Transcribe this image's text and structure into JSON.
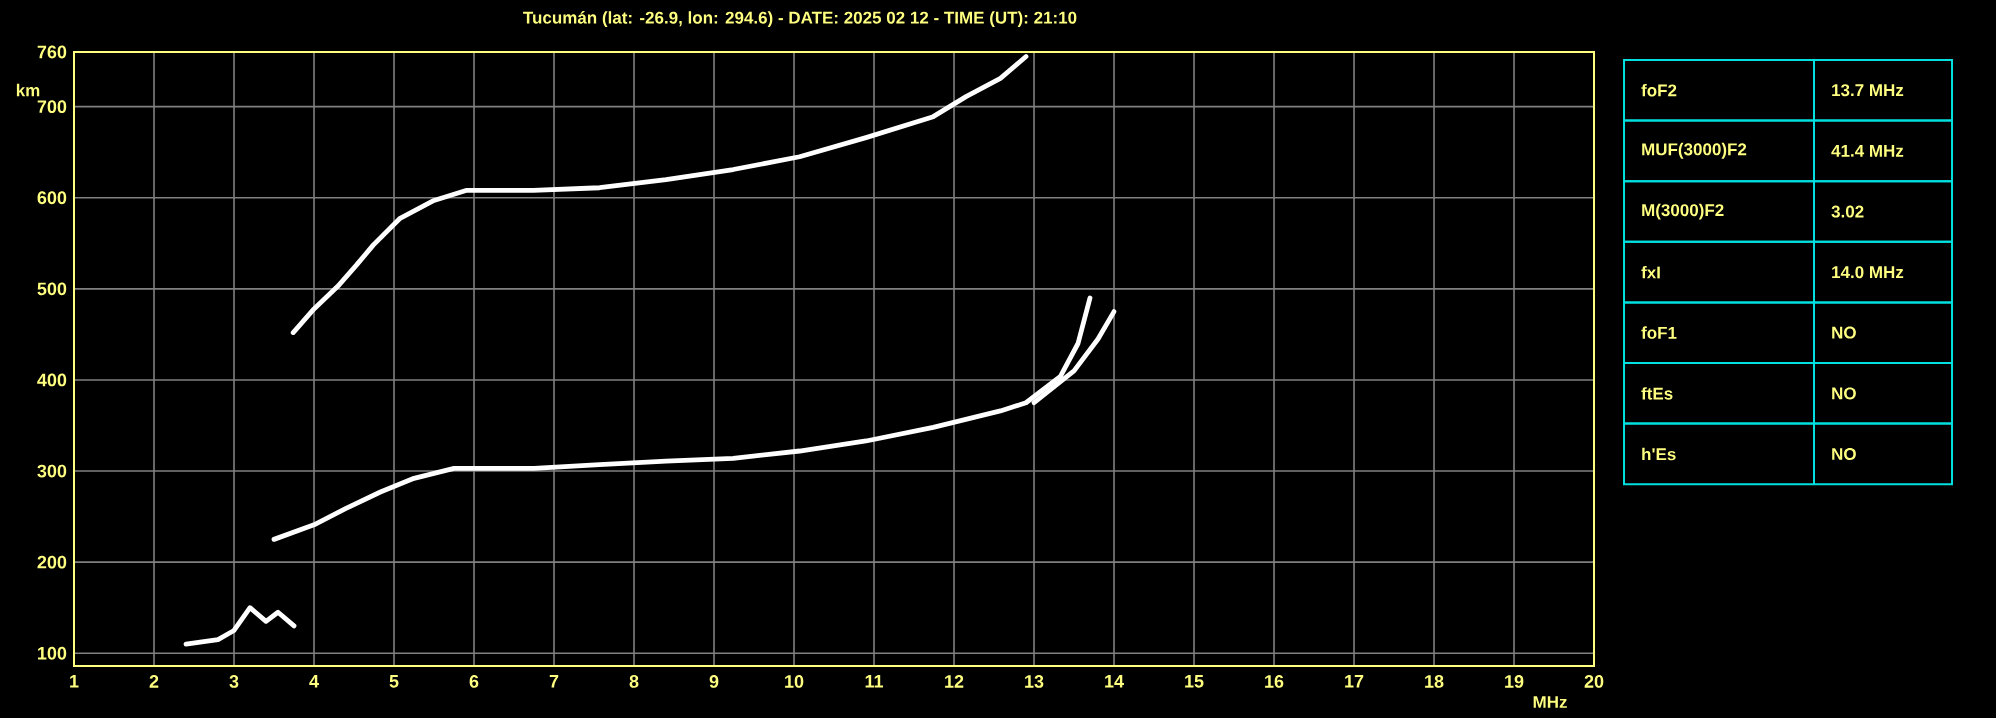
{
  "chart_data": [
    {
      "type": "line",
      "title": "Tucumán (lat: -26.9, lon: 294.6) - DATE: 2025 02 12 - TIME (UT): 21:10",
      "xlabel": "MHz",
      "ylabel": "km",
      "xlim": [
        1,
        20
      ],
      "ylim": [
        86,
        760
      ],
      "xticks": [
        1,
        2,
        3,
        4,
        5,
        6,
        7,
        8,
        9,
        10,
        11,
        12,
        13,
        14,
        15,
        16,
        17,
        18,
        19,
        20
      ],
      "yticks": [
        100,
        200,
        300,
        400,
        500,
        600,
        700,
        760
      ],
      "grid": true,
      "marker": "none",
      "line_style": "solid",
      "series": [
        {
          "color": "#ffffff",
          "x": [
            3.74,
            4.0,
            4.3,
            4.53,
            4.74,
            5.07,
            5.5,
            5.9,
            6.74,
            7.57,
            8.4,
            9.24,
            10.07,
            10.9,
            11.74,
            12.15,
            12.58,
            12.9
          ],
          "values": [
            452,
            478,
            503,
            526,
            548,
            577,
            597,
            608,
            608,
            611,
            620,
            631,
            645,
            666,
            689,
            711,
            731,
            755
          ]
        },
        {
          "color": "#ffffff",
          "x": [
            3.5,
            4.0,
            4.4,
            4.83,
            5.25,
            5.75,
            6.75,
            7.57,
            8.4,
            9.24,
            10.07,
            10.9,
            11.74,
            12.58,
            12.9,
            13.33,
            13.55,
            13.7
          ],
          "values": [
            225,
            241,
            259,
            277,
            292,
            303,
            303,
            307,
            311,
            314,
            322,
            333,
            348,
            366,
            375,
            404,
            440,
            490
          ]
        },
        {
          "color": "#ffffff",
          "x": [
            13.0,
            13.5,
            13.8,
            14.0
          ],
          "values": [
            375,
            410,
            445,
            475
          ]
        },
        {
          "color": "#ffffff",
          "x": [
            2.4,
            2.8,
            3.0,
            3.2,
            3.4,
            3.55,
            3.75
          ],
          "values": [
            110,
            115,
            125,
            150,
            135,
            145,
            130
          ]
        }
      ]
    },
    {
      "type": "other",
      "annotations": [
        "foF2",
        "13.7 MHz",
        "MUF(3000)F2",
        "41.4 MHz",
        "M(3000)F2",
        "3.02",
        "fxI",
        "14.0 MHz",
        "foF1",
        "NO",
        "ftEs",
        "NO",
        "h'Es",
        "NO"
      ]
    }
  ]
}
